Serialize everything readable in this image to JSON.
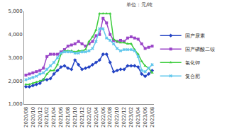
{
  "chart_data": {
    "type": "line",
    "annotations": [
      "单位：元/吨"
    ],
    "categories": [
      "2020/08",
      null,
      "2020/10",
      null,
      "2020/12",
      null,
      "2021/02",
      null,
      "2021/04",
      null,
      "2021/06",
      null,
      "2021/08",
      null,
      "2021/10",
      null,
      "2021/12",
      null,
      "2022/02",
      null,
      "2022/04",
      null,
      "2022/06",
      null,
      "2022/08",
      null,
      "2022/10",
      null,
      "2022/12",
      null,
      "2023/02",
      null,
      "2023/04",
      null,
      "2023/06",
      null,
      "2023/08"
    ],
    "series": [
      {
        "name": "国产尿素",
        "color": "#2343c4",
        "marker": "diamond",
        "values": [
          1750,
          1750,
          1800,
          1850,
          1900,
          2050,
          2050,
          2100,
          2300,
          2450,
          2600,
          2650,
          2550,
          2500,
          2900,
          2700,
          2500,
          2550,
          2600,
          2700,
          2800,
          2900,
          3150,
          3150,
          2800,
          2400,
          2450,
          2500,
          2500,
          2650,
          2650,
          2650,
          2600,
          2300,
          2200,
          2300,
          2450
        ]
      },
      {
        "name": "国产磷酸二铵",
        "color": "#9a45c8",
        "marker": "square",
        "values": [
          2250,
          2300,
          2350,
          2400,
          2450,
          2550,
          3050,
          3150,
          3150,
          3150,
          3250,
          3350,
          3500,
          3550,
          3600,
          3700,
          3600,
          3500,
          3600,
          3700,
          3950,
          4000,
          4700,
          4500,
          4000,
          3750,
          3700,
          3750,
          3700,
          3850,
          3900,
          3850,
          3800,
          3600,
          3400,
          3450,
          3500
        ]
      },
      {
        "name": "氯化钾",
        "color": "#3ccc3c",
        "marker": "triangle-up",
        "values": [
          1850,
          1850,
          1900,
          1950,
          2000,
          2050,
          2300,
          2450,
          2450,
          2700,
          3150,
          3300,
          3300,
          3300,
          3250,
          3300,
          3300,
          3350,
          3700,
          3900,
          4200,
          4900,
          4900,
          4900,
          4900,
          3800,
          3700,
          3650,
          3650,
          3600,
          3600,
          3350,
          3150,
          2850,
          2650,
          2550,
          2350
        ]
      },
      {
        "name": "复合肥",
        "color": "#5fc6ec",
        "marker": "x",
        "values": [
          2050,
          2100,
          2150,
          2200,
          2300,
          2350,
          2500,
          2650,
          2800,
          3000,
          3200,
          3250,
          3250,
          3250,
          3200,
          3200,
          3250,
          3250,
          3300,
          3400,
          3700,
          4250,
          4250,
          3850,
          3750,
          3600,
          3400,
          3300,
          3350,
          3350,
          3350,
          3300,
          3050,
          2450,
          2400,
          2550,
          2700
        ]
      }
    ],
    "ylim": [
      1000,
      5000
    ],
    "yticks": [
      {
        "value": 1000,
        "label": "1,000"
      },
      {
        "value": 2000,
        "label": "2,000"
      },
      {
        "value": 3000,
        "label": "3,000"
      },
      {
        "value": 4000,
        "label": "4,000"
      },
      {
        "value": 5000,
        "label": "5,000"
      }
    ],
    "grid": false,
    "legend": "right"
  }
}
